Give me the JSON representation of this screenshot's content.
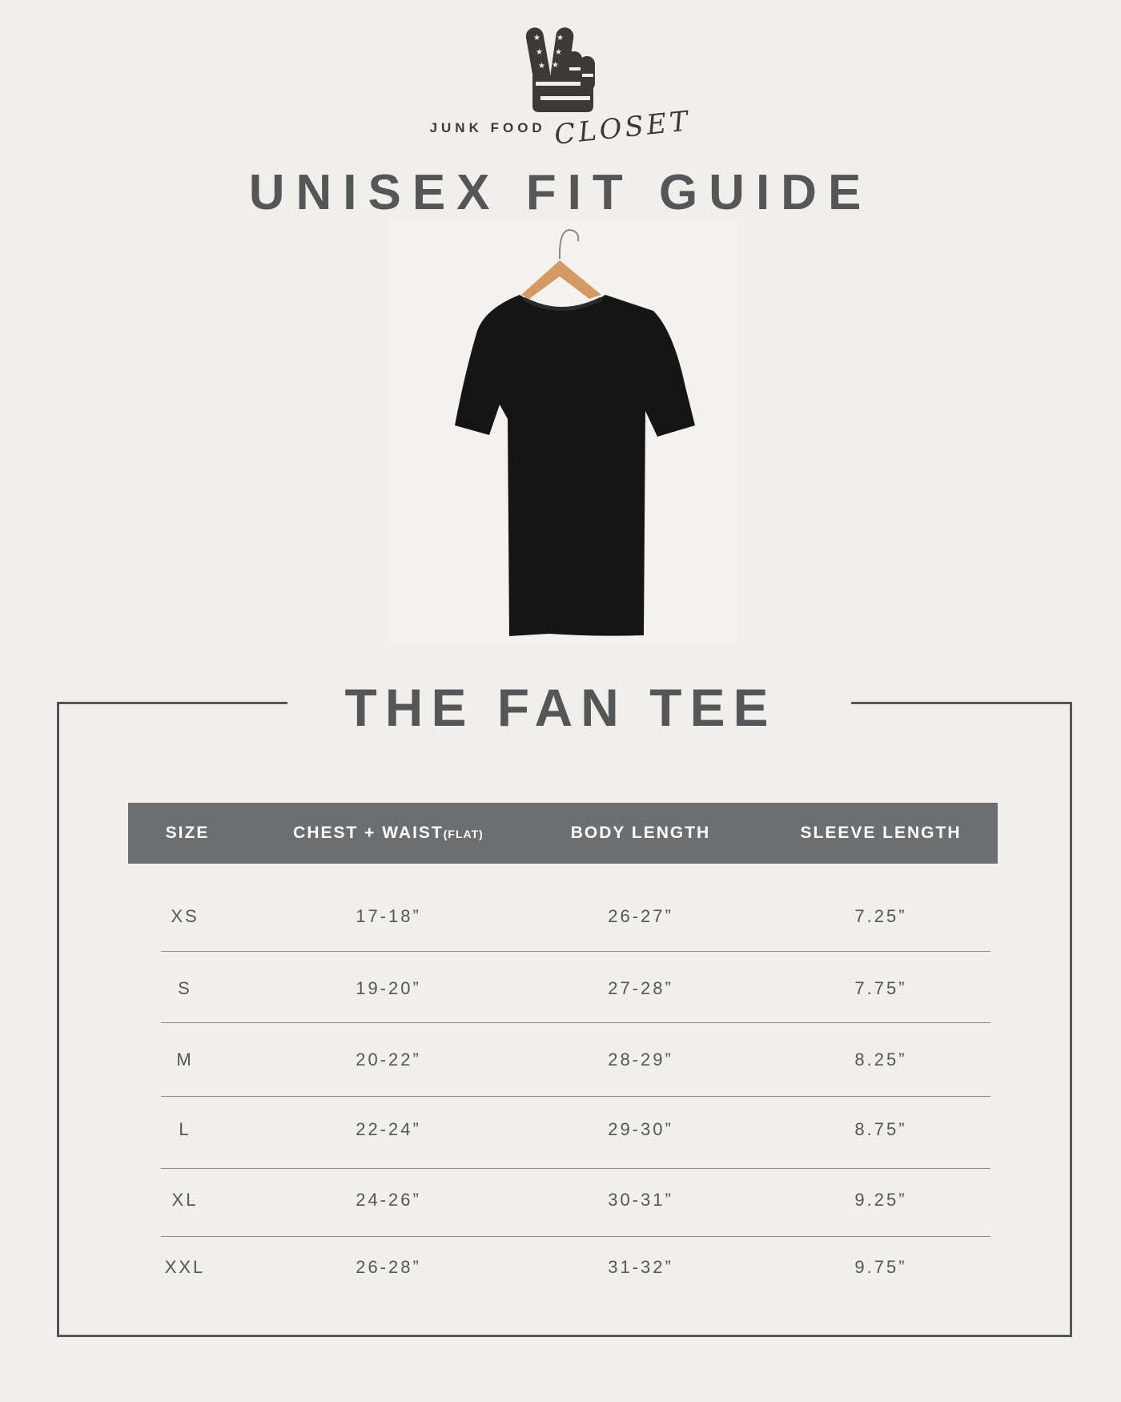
{
  "brand": {
    "name_part1": "JUNK FOOD",
    "name_part2": "CLOSET"
  },
  "title": "UNISEX FIT GUIDE",
  "product": "THE FAN TEE",
  "table": {
    "headers": [
      "SIZE",
      "CHEST + WAIST",
      "BODY LENGTH",
      "SLEEVE LENGTH"
    ],
    "header_suffix": "(FLAT)",
    "rows": [
      [
        "XS",
        "17-18”",
        "26-27”",
        "7.25”"
      ],
      [
        "S",
        "19-20”",
        "27-28”",
        "7.75”"
      ],
      [
        "M",
        "20-22”",
        "28-29”",
        "8.25”"
      ],
      [
        "L",
        "22-24”",
        "29-30”",
        "8.75”"
      ],
      [
        "XL",
        "24-26”",
        "30-31”",
        "9.25”"
      ],
      [
        "XXL",
        "26-28”",
        "31-32”",
        "9.75”"
      ]
    ]
  },
  "colors": {
    "background": "#f1efeb",
    "text": "#555657",
    "header_bar": "#6d6e6f",
    "shirt": "#151515"
  },
  "icons": {
    "logo": "peace-hand-flag-icon",
    "product": "black-tshirt-on-hanger"
  }
}
